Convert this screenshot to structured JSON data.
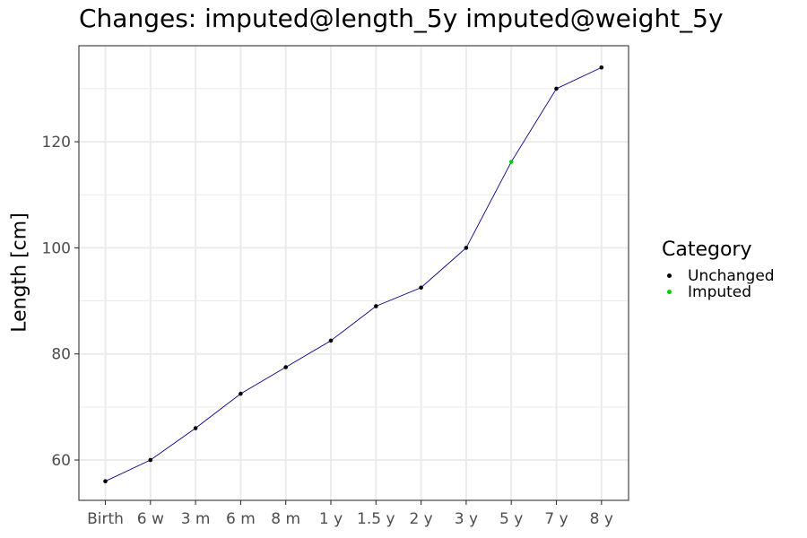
{
  "chart_data": {
    "type": "line",
    "title": "Changes: imputed@length_5y imputed@weight_5y",
    "xlabel": "",
    "ylabel": "Length [cm]",
    "categories": [
      "Birth",
      "6 w",
      "3 m",
      "6 m",
      "8 m",
      "1 y",
      "1.5 y",
      "2 y",
      "3 y",
      "5 y",
      "7 y",
      "8 y"
    ],
    "values": [
      56,
      60,
      66,
      72.5,
      77.5,
      82.5,
      89,
      92.5,
      100,
      116.2,
      130,
      134
    ],
    "point_category": [
      "Unchanged",
      "Unchanged",
      "Unchanged",
      "Unchanged",
      "Unchanged",
      "Unchanged",
      "Unchanged",
      "Unchanged",
      "Unchanged",
      "Imputed",
      "Unchanged",
      "Unchanged"
    ],
    "ylim": [
      52.4,
      138.1
    ],
    "yticks": [
      60,
      80,
      100,
      120
    ],
    "grid": true,
    "line_color": "#00008B",
    "legend": {
      "title": "Category",
      "position": "right",
      "items": [
        {
          "label": "Unchanged",
          "color": "#000000"
        },
        {
          "label": "Imputed",
          "color": "#00CD00"
        }
      ]
    }
  }
}
